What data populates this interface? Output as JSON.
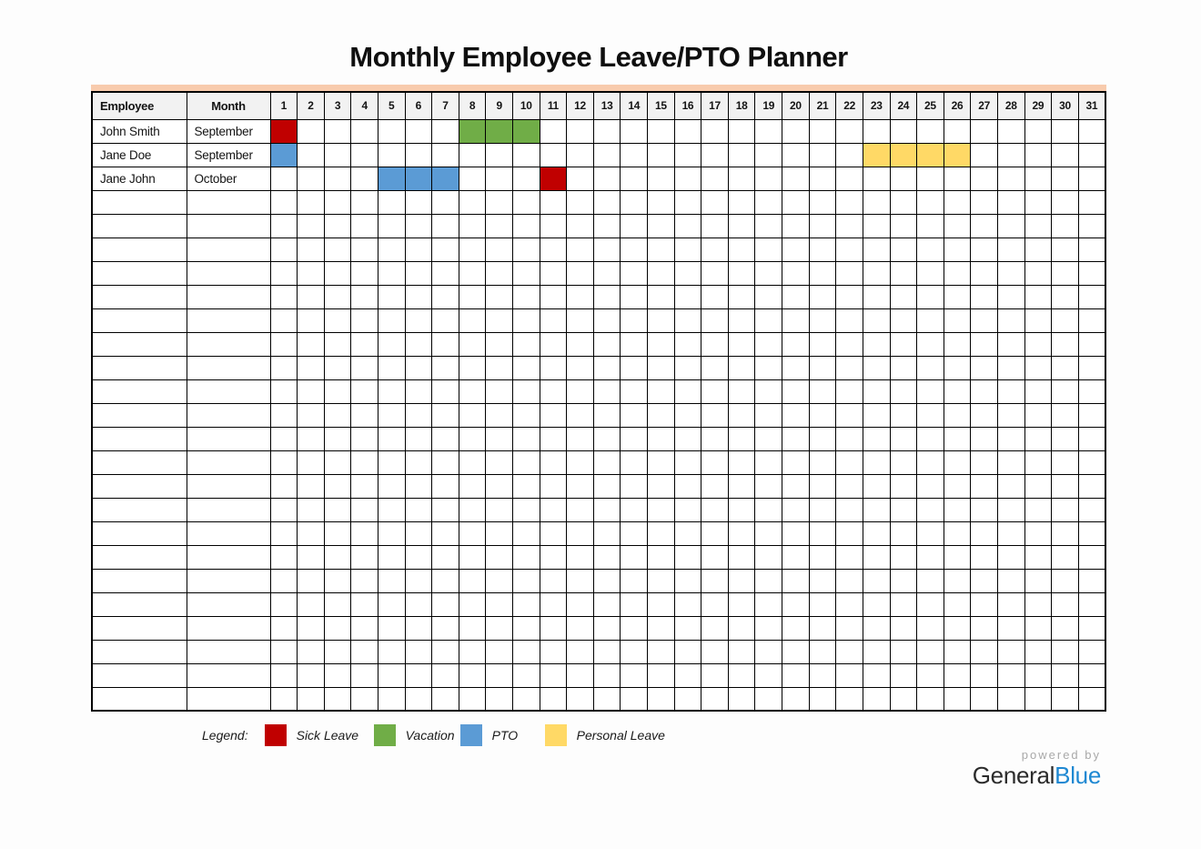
{
  "title": "Monthly Employee Leave/PTO Planner",
  "table": {
    "columns": {
      "employee": "Employee",
      "month": "Month"
    },
    "days": [
      "1",
      "2",
      "3",
      "4",
      "5",
      "6",
      "7",
      "8",
      "9",
      "10",
      "11",
      "12",
      "13",
      "14",
      "15",
      "16",
      "17",
      "18",
      "19",
      "20",
      "21",
      "22",
      "23",
      "24",
      "25",
      "26",
      "27",
      "28",
      "29",
      "30",
      "31"
    ],
    "rows": [
      {
        "employee": "John Smith",
        "month": "September",
        "leaves": [
          {
            "day": 1,
            "type": "sick"
          },
          {
            "day": 8,
            "type": "vacation"
          },
          {
            "day": 9,
            "type": "vacation"
          },
          {
            "day": 10,
            "type": "vacation"
          }
        ]
      },
      {
        "employee": "Jane Doe",
        "month": "September",
        "leaves": [
          {
            "day": 1,
            "type": "pto"
          },
          {
            "day": 23,
            "type": "personal"
          },
          {
            "day": 24,
            "type": "personal"
          },
          {
            "day": 25,
            "type": "personal"
          },
          {
            "day": 26,
            "type": "personal"
          }
        ]
      },
      {
        "employee": "Jane John",
        "month": "October",
        "leaves": [
          {
            "day": 5,
            "type": "pto"
          },
          {
            "day": 6,
            "type": "pto"
          },
          {
            "day": 7,
            "type": "pto"
          },
          {
            "day": 11,
            "type": "sick"
          }
        ]
      }
    ],
    "empty_rows": 22
  },
  "legend": {
    "label": "Legend:",
    "items": [
      {
        "key": "sick",
        "label": "Sick Leave",
        "color": "#c00000"
      },
      {
        "key": "vacation",
        "label": "Vacation",
        "color": "#70ad47"
      },
      {
        "key": "pto",
        "label": "PTO",
        "color": "#5b9bd5"
      },
      {
        "key": "personal",
        "label": "Personal Leave",
        "color": "#ffd966"
      }
    ]
  },
  "colors": {
    "accent_bar": "#f8cbad",
    "header_bg": "#f2f2f2",
    "grid_border": "#000000"
  },
  "footer": {
    "powered_by": "powered by",
    "brand_first": "General",
    "brand_second": "Blue",
    "brand_first_color": "#2b2b2b",
    "brand_second_color": "#1e88d2"
  }
}
